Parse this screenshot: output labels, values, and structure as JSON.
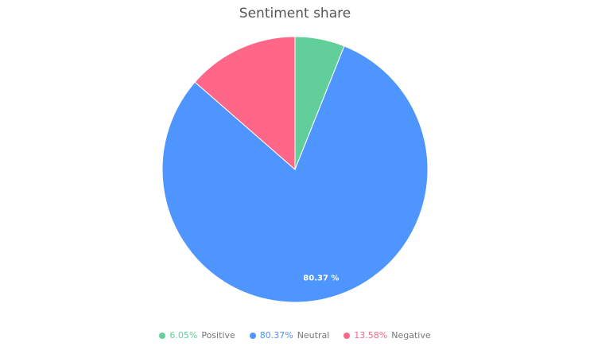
{
  "chart_data": {
    "type": "pie",
    "title": "Sentiment share",
    "categories": [
      "Positive",
      "Neutral",
      "Negative"
    ],
    "values": [
      6.05,
      80.37,
      13.58
    ],
    "value_labels": [
      "6.05%",
      "80.37%",
      "13.58%"
    ],
    "data_labels": [
      null,
      "80.37 %",
      null
    ],
    "colors": [
      "#62cf9a",
      "#4f95ff",
      "#ff6789"
    ],
    "legend": "bottom"
  }
}
